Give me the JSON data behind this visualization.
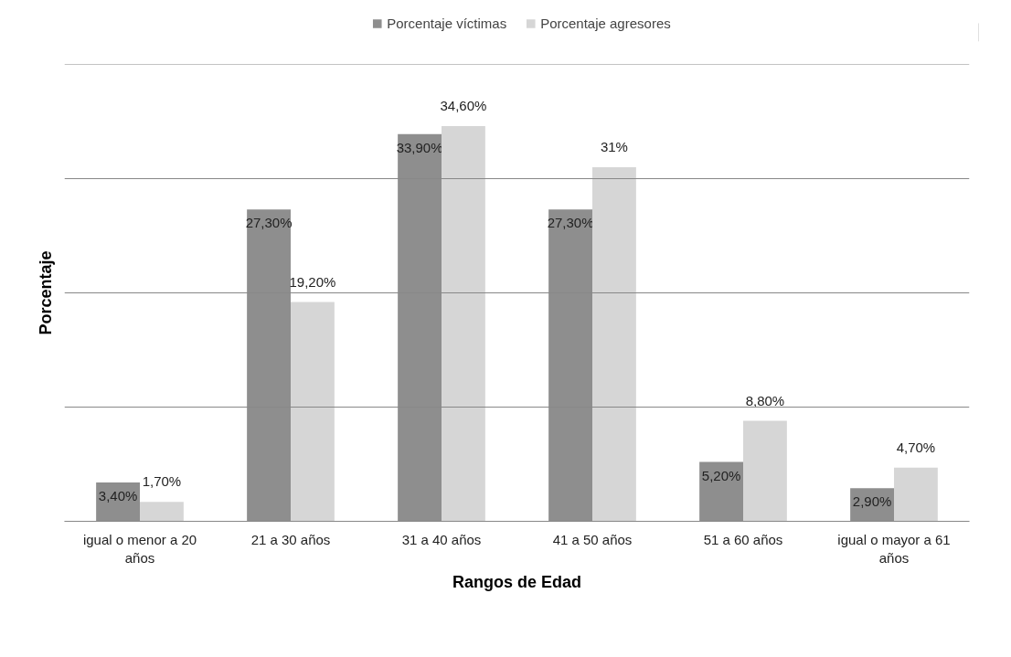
{
  "chart_data": {
    "type": "bar",
    "xlabel": "Rangos de Edad",
    "ylabel": "Porcentaje",
    "categories": [
      "igual o menor a 20 años",
      "21 a 30 años",
      "31 a 40 años",
      "41 a 50 años",
      "51 a 60 años",
      "igual o mayor a 61 años"
    ],
    "series": [
      {
        "name": "Porcentaje víctimas",
        "color": "#8e8e8e",
        "values": [
          3.4,
          27.3,
          33.9,
          27.3,
          5.2,
          2.9
        ],
        "value_labels": [
          "3,40%",
          "27,30%",
          "33,90%",
          "27,30%",
          "5,20%",
          "2,90%"
        ]
      },
      {
        "name": "Porcentaje agresores",
        "color": "#d6d6d6",
        "values": [
          1.7,
          19.2,
          34.6,
          31,
          8.8,
          4.7
        ],
        "value_labels": [
          "1,70%",
          "19,20%",
          "34,60%",
          "31%",
          "8,80%",
          "4,70%"
        ]
      }
    ],
    "ylim": [
      0,
      40
    ],
    "yticks": [
      {
        "value": 0,
        "label": null
      },
      {
        "value": 10,
        "label": null
      },
      {
        "value": 20,
        "label": null
      },
      {
        "value": 30,
        "label": null
      },
      {
        "value": 40,
        "label": null
      }
    ],
    "grid": "y",
    "legend": "top"
  }
}
